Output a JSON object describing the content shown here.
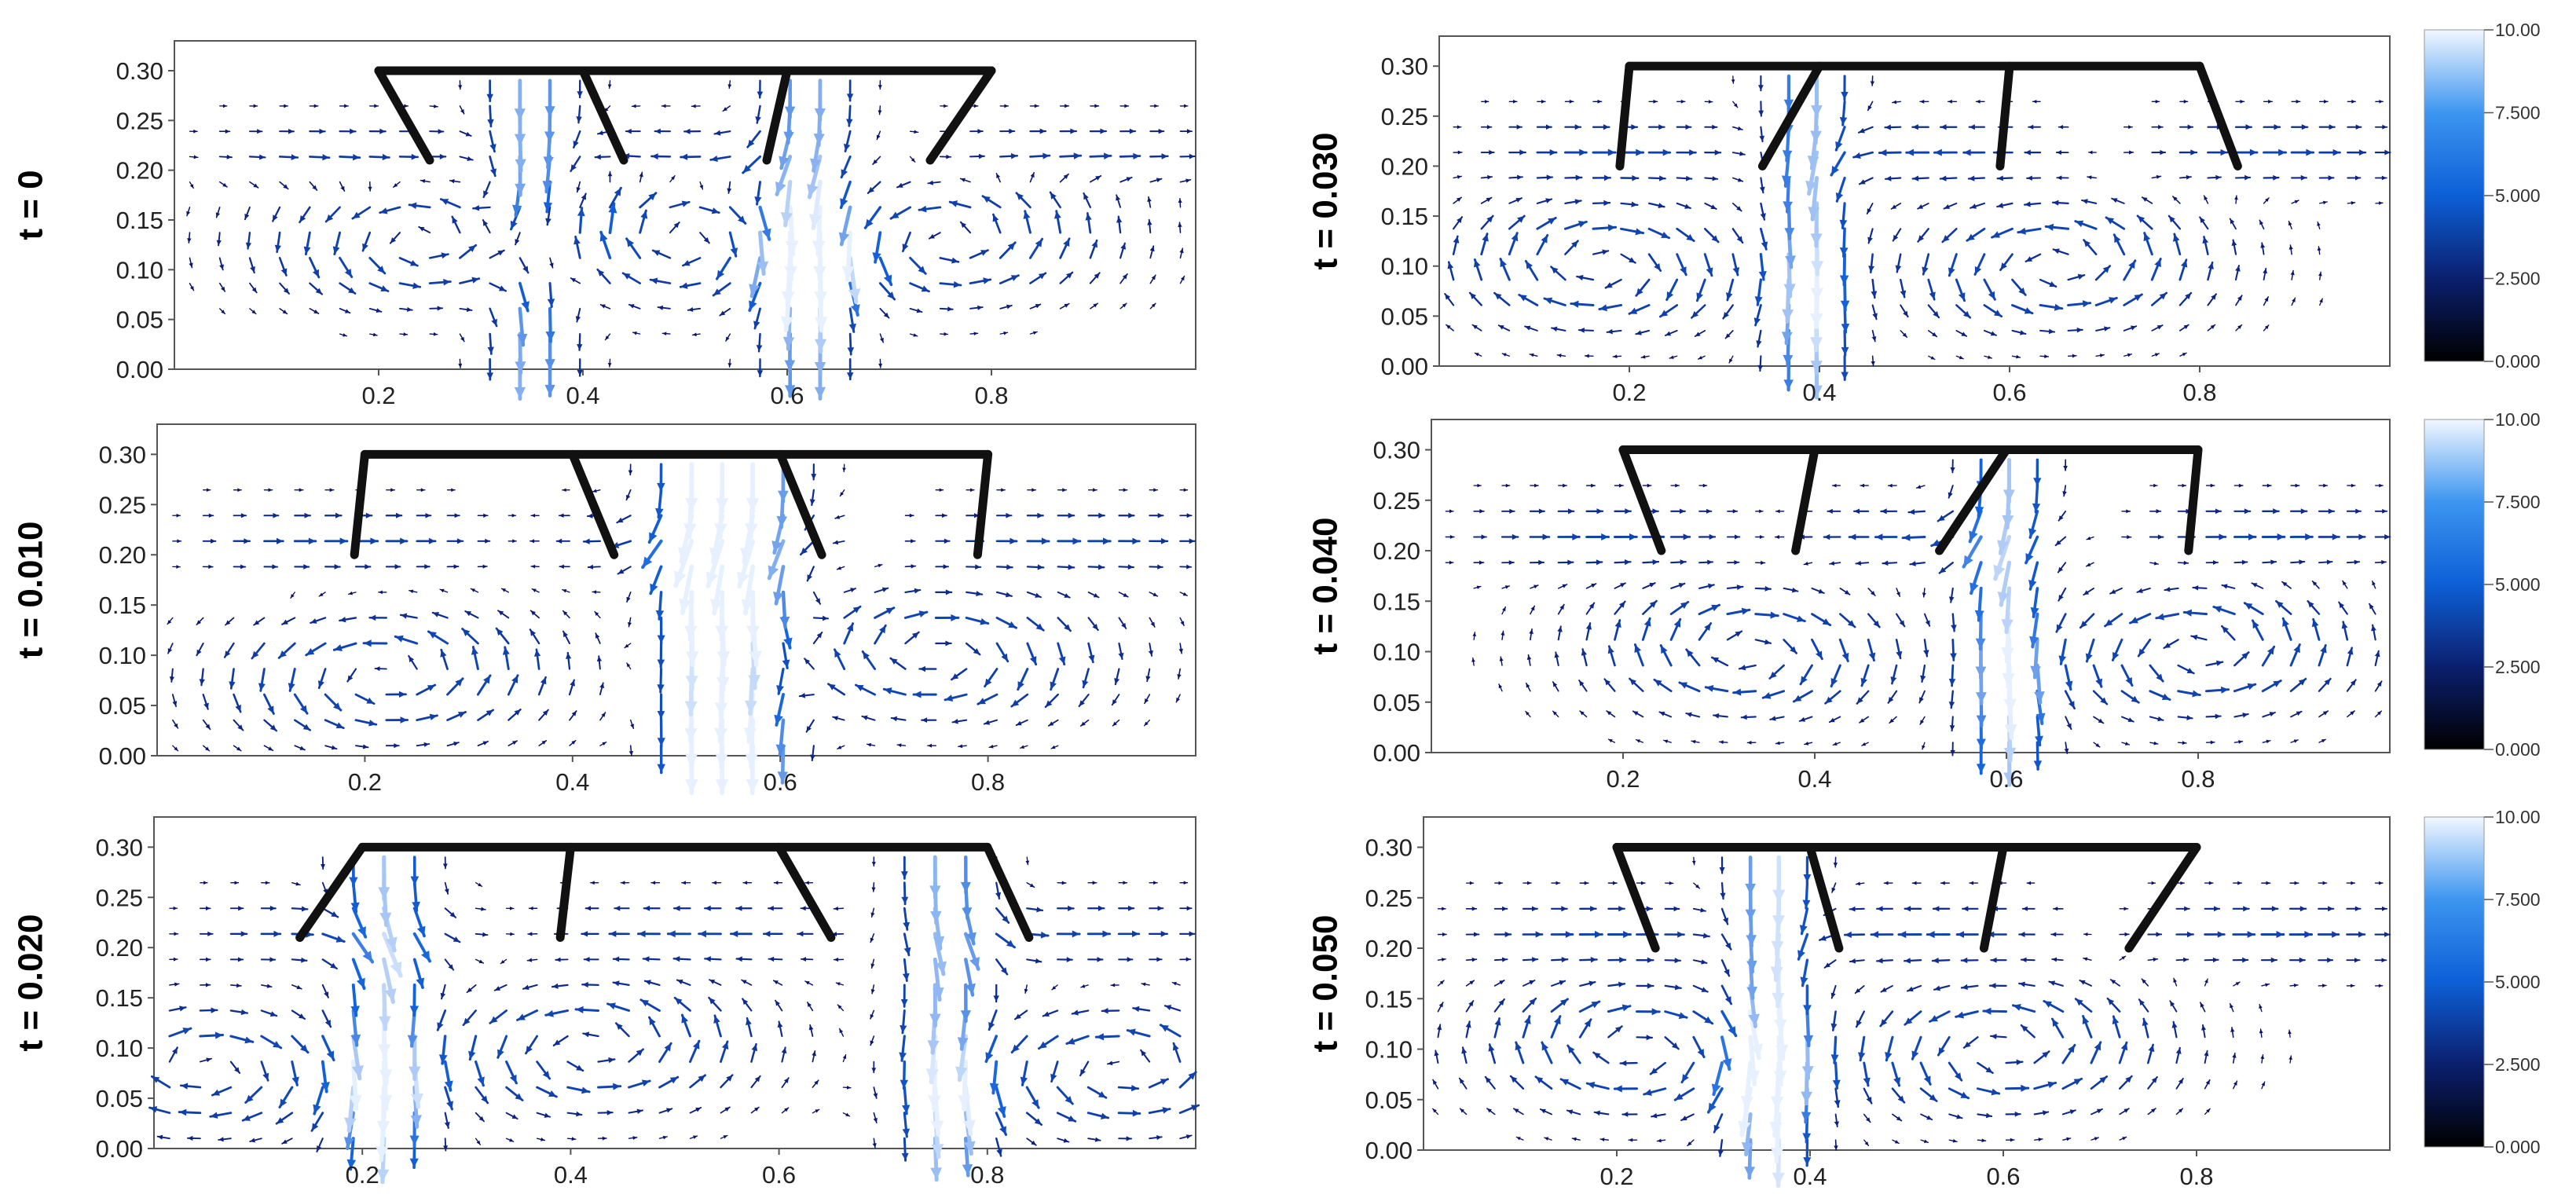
{
  "colors": {
    "frame": "#555555",
    "plate": "#111111",
    "arrow_low": "#0a0a5e",
    "arrow_mid": "#1464dc",
    "arrow_high": "#e6f0ff",
    "colorbar_stops": [
      "#000000",
      "#0b1f6e",
      "#0d5fd6",
      "#3d95f0",
      "#f2f7ff"
    ]
  },
  "colorbar": {
    "ticks": [
      "0.000",
      "2.500",
      "5.000",
      "7.500",
      "10.00"
    ],
    "range": [
      0,
      10
    ]
  },
  "chart_data": [
    {
      "type": "quiver",
      "time_label": "t = 0",
      "x_ticks": [
        "0.2",
        "0.4",
        "0.6",
        "0.8"
      ],
      "y_ticks": [
        "0.00",
        "0.05",
        "0.10",
        "0.15",
        "0.20",
        "0.25",
        "0.30"
      ],
      "xlim": [
        0,
        1
      ],
      "ylim": [
        0,
        0.33
      ],
      "structure": {
        "top_y": 0.3,
        "top_x": [
          0.2,
          0.8
        ],
        "legs": [
          [
            0.2,
            0.25
          ],
          [
            0.4,
            0.44
          ],
          [
            0.6,
            0.58
          ],
          [
            0.8,
            0.74
          ]
        ],
        "bottom_y": 0.21
      },
      "vortex_centers": [
        [
          0.25,
          0.13,
          1
        ],
        [
          0.5,
          0.13,
          -1
        ],
        [
          0.75,
          0.13,
          1
        ]
      ],
      "jets": [
        [
          0.35,
          -1
        ],
        [
          0.62,
          -1
        ]
      ],
      "jet_speed": 8
    },
    {
      "type": "quiver",
      "time_label": "t = 0.010",
      "x_ticks": [
        "0.2",
        "0.4",
        "0.6",
        "0.8"
      ],
      "y_ticks": [
        "0.00",
        "0.05",
        "0.10",
        "0.15",
        "0.20",
        "0.25",
        "0.30"
      ],
      "xlim": [
        0,
        1
      ],
      "ylim": [
        0,
        0.33
      ],
      "structure": {
        "top_y": 0.3,
        "top_x": [
          0.2,
          0.8
        ],
        "legs": [
          [
            0.2,
            0.19
          ],
          [
            0.4,
            0.44
          ],
          [
            0.6,
            0.64
          ],
          [
            0.8,
            0.79
          ]
        ],
        "bottom_y": 0.2
      },
      "vortex_centers": [
        [
          0.22,
          0.08,
          1
        ],
        [
          0.75,
          0.1,
          -1
        ]
      ],
      "jets": [
        [
          0.52,
          -1
        ],
        [
          0.58,
          -1
        ]
      ],
      "jet_speed": 9
    },
    {
      "type": "quiver",
      "time_label": "t = 0.020",
      "x_ticks": [
        "0.2",
        "0.4",
        "0.6",
        "0.8"
      ],
      "y_ticks": [
        "0.00",
        "0.05",
        "0.10",
        "0.15",
        "0.20",
        "0.25",
        "0.30"
      ],
      "xlim": [
        0,
        1
      ],
      "ylim": [
        0,
        0.33
      ],
      "structure": {
        "top_y": 0.3,
        "top_x": [
          0.2,
          0.8
        ],
        "legs": [
          [
            0.2,
            0.14
          ],
          [
            0.4,
            0.39
          ],
          [
            0.6,
            0.65
          ],
          [
            0.8,
            0.84
          ]
        ],
        "bottom_y": 0.21
      },
      "vortex_centers": [
        [
          0.05,
          0.08,
          -1
        ],
        [
          0.42,
          0.1,
          1
        ],
        [
          0.93,
          0.08,
          1
        ]
      ],
      "jets": [
        [
          0.22,
          -1
        ],
        [
          0.76,
          -1
        ]
      ],
      "jet_speed": 8
    },
    {
      "type": "quiver",
      "time_label": "t = 0.030",
      "x_ticks": [
        "0.2",
        "0.4",
        "0.6",
        "0.8"
      ],
      "y_ticks": [
        "0.00",
        "0.05",
        "0.10",
        "0.15",
        "0.20",
        "0.25",
        "0.30"
      ],
      "xlim": [
        0,
        1
      ],
      "ylim": [
        0,
        0.33
      ],
      "structure": {
        "top_y": 0.3,
        "top_x": [
          0.2,
          0.8
        ],
        "legs": [
          [
            0.2,
            0.19
          ],
          [
            0.4,
            0.34
          ],
          [
            0.6,
            0.59
          ],
          [
            0.8,
            0.84
          ]
        ],
        "bottom_y": 0.2
      },
      "vortex_centers": [
        [
          0.17,
          0.1,
          -1
        ],
        [
          0.65,
          0.1,
          1
        ]
      ],
      "jets": [
        [
          0.39,
          -1
        ]
      ],
      "jet_speed": 8
    },
    {
      "type": "quiver",
      "time_label": "t = 0.040",
      "x_ticks": [
        "0.2",
        "0.4",
        "0.6",
        "0.8"
      ],
      "y_ticks": [
        "0.00",
        "0.05",
        "0.10",
        "0.15",
        "0.20",
        "0.25",
        "0.30"
      ],
      "xlim": [
        0,
        1
      ],
      "ylim": [
        0,
        0.33
      ],
      "structure": {
        "top_y": 0.3,
        "top_x": [
          0.2,
          0.8
        ],
        "legs": [
          [
            0.2,
            0.24
          ],
          [
            0.4,
            0.38
          ],
          [
            0.6,
            0.53
          ],
          [
            0.8,
            0.79
          ]
        ],
        "bottom_y": 0.2
      },
      "vortex_centers": [
        [
          0.33,
          0.1,
          -1
        ],
        [
          0.8,
          0.1,
          1
        ]
      ],
      "jets": [
        [
          0.6,
          -1
        ]
      ],
      "jet_speed": 8
    },
    {
      "type": "quiver",
      "time_label": "t = 0.050",
      "x_ticks": [
        "0.2",
        "0.4",
        "0.6",
        "0.8"
      ],
      "y_ticks": [
        "0.00",
        "0.05",
        "0.10",
        "0.15",
        "0.20",
        "0.25",
        "0.30"
      ],
      "xlim": [
        0,
        1
      ],
      "ylim": [
        0,
        0.33
      ],
      "structure": {
        "top_y": 0.3,
        "top_x": [
          0.2,
          0.8
        ],
        "legs": [
          [
            0.2,
            0.24
          ],
          [
            0.4,
            0.43
          ],
          [
            0.6,
            0.58
          ],
          [
            0.8,
            0.73
          ]
        ],
        "bottom_y": 0.2
      },
      "vortex_centers": [
        [
          0.22,
          0.1,
          -1
        ],
        [
          0.6,
          0.1,
          1
        ]
      ],
      "jets": [
        [
          0.36,
          -1
        ]
      ],
      "jet_speed": 9
    }
  ]
}
